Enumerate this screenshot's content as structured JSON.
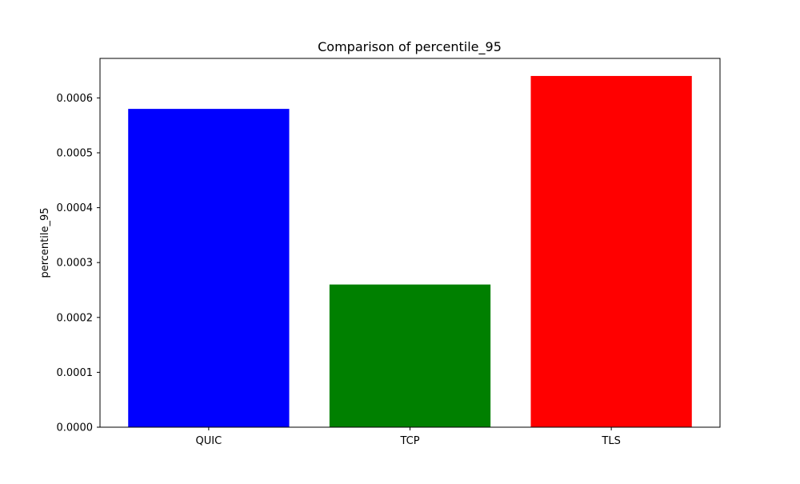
{
  "chart_data": {
    "type": "bar",
    "title": "Comparison of percentile_95",
    "xlabel": "",
    "ylabel": "percentile_95",
    "categories": [
      "QUIC",
      "TCP",
      "TLS"
    ],
    "values": [
      0.00058,
      0.00026,
      0.00064
    ],
    "colors": [
      "#0000ff",
      "#008000",
      "#ff0000"
    ],
    "ylim": [
      0,
      0.000672
    ],
    "yticks": [
      0.0,
      0.0001,
      0.0002,
      0.0003,
      0.0004,
      0.0005,
      0.0006
    ],
    "ytick_labels": [
      "0.0000",
      "0.0001",
      "0.0002",
      "0.0003",
      "0.0004",
      "0.0005",
      "0.0006"
    ],
    "grid": false,
    "legend": "none"
  }
}
